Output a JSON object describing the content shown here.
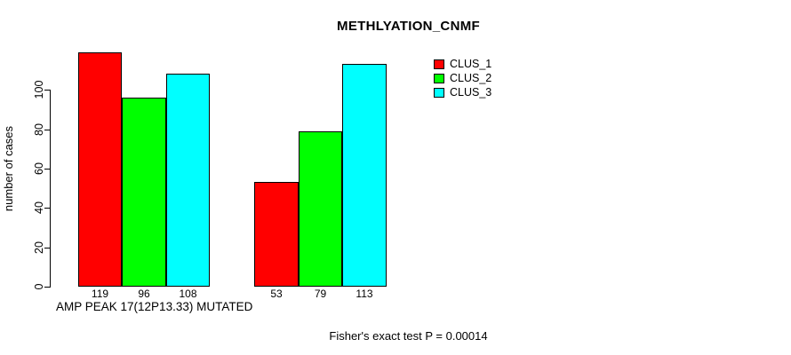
{
  "chart_data": {
    "type": "bar",
    "title": "METHLYATION_CNMF",
    "ylabel": "number of cases",
    "xlabel": "AMP PEAK 17(12P13.33) MUTATED",
    "annotation": "Fisher's exact test P = 0.00014",
    "categories": [
      "AMP PEAK 17(12P13.33) MUTATED",
      ""
    ],
    "series": [
      {
        "name": "CLUS_1",
        "color": "#ff0000",
        "values": [
          119,
          53
        ]
      },
      {
        "name": "CLUS_2",
        "color": "#00ff00",
        "values": [
          96,
          79
        ]
      },
      {
        "name": "CLUS_3",
        "color": "#00ffff",
        "values": [
          108,
          113
        ]
      }
    ],
    "bar_value_labels": [
      [
        119,
        96,
        108
      ],
      [
        53,
        79,
        113
      ]
    ],
    "yticks": [
      0,
      20,
      40,
      60,
      80,
      100
    ],
    "ylim": [
      0,
      119
    ],
    "grid": false,
    "legend_position": "top-right",
    "background_color": "#ffffff",
    "text_color": "#000000"
  }
}
